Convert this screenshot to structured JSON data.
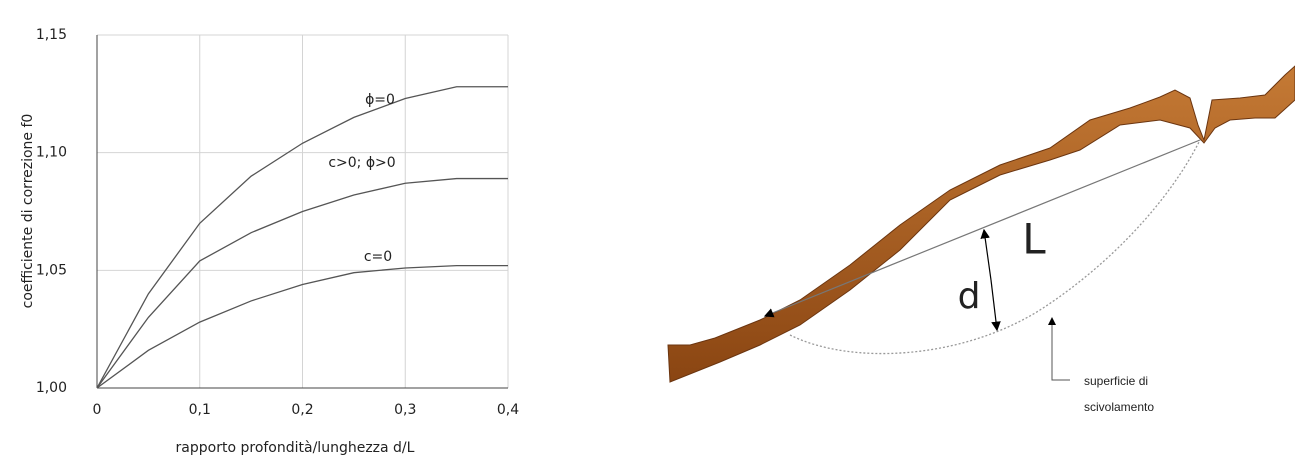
{
  "chart_data": {
    "type": "line",
    "y_label": "coefficiente di correzione f0",
    "x_label": "rapporto profondità/lunghezza  d/L",
    "x": [
      0,
      0.05,
      0.1,
      0.15,
      0.2,
      0.25,
      0.3,
      0.35,
      0.4
    ],
    "series": [
      {
        "name": "ϕ=0",
        "color": "#555555",
        "values": [
          1.0,
          1.04,
          1.07,
          1.09,
          1.104,
          1.115,
          1.123,
          1.128,
          1.128
        ]
      },
      {
        "name": "c>0; ϕ>0",
        "color": "#555555",
        "values": [
          1.0,
          1.03,
          1.054,
          1.066,
          1.075,
          1.082,
          1.087,
          1.089,
          1.089
        ]
      },
      {
        "name": "c=0",
        "color": "#555555",
        "values": [
          1.0,
          1.016,
          1.028,
          1.037,
          1.044,
          1.049,
          1.051,
          1.052,
          1.052
        ]
      }
    ],
    "xlim": [
      0,
      0.4
    ],
    "ylim": [
      1.0,
      1.15
    ],
    "xticks": [
      0,
      {
        "value": 0.1,
        "label": "0,1"
      },
      {
        "value": 0.2,
        "label": "0,2"
      },
      {
        "value": 0.3,
        "label": "0,3"
      },
      {
        "value": 0.4,
        "label": "0,4"
      }
    ],
    "yticks": [
      {
        "value": 1.0,
        "label": "1,00"
      },
      {
        "value": 1.05,
        "label": "1,05"
      },
      {
        "value": 1.1,
        "label": "1,10"
      },
      {
        "value": 1.15,
        "label": "1,15"
      }
    ],
    "grid": true
  },
  "diagram": {
    "chord_label": "L",
    "depth_label": "d",
    "surface_label": [
      "superficie di",
      "scivolamento"
    ]
  }
}
